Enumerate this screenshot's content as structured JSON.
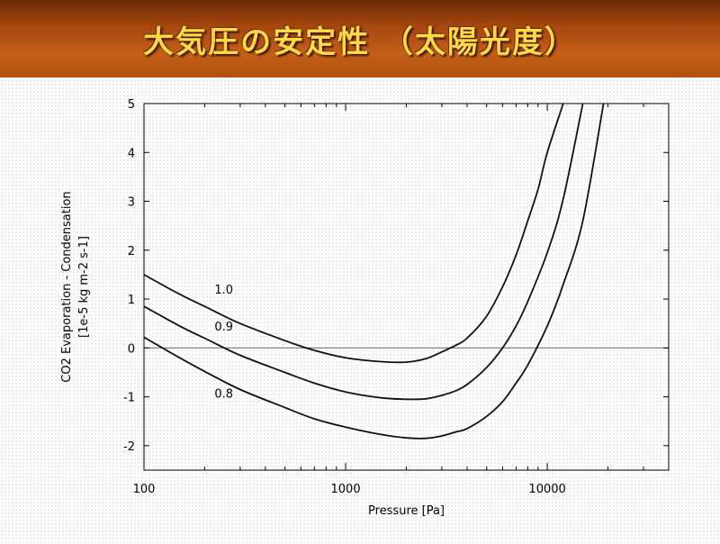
{
  "title": "大気圧の安定性 （太陽光度）",
  "chart_data": {
    "type": "line",
    "xlabel": "Pressure [Pa]",
    "ylabel_line1": "CO2 Evaporation - Condensation",
    "ylabel_line2": "[1e-5 kg m-2 s-1]",
    "xscale": "log",
    "xlim": [
      100,
      40000
    ],
    "ylim": [
      -2.5,
      5
    ],
    "xticks": [
      100,
      1000,
      10000
    ],
    "xtick_labels": [
      "100",
      "1000",
      "10000"
    ],
    "yticks": [
      -2,
      -1,
      0,
      1,
      2,
      3,
      4,
      5
    ],
    "ytick_labels": [
      "-2",
      "-1",
      "0",
      "1",
      "2",
      "3",
      "4",
      "5"
    ],
    "zero_line": true,
    "series": [
      {
        "name": "1.0",
        "x": [
          100,
          150,
          200,
          300,
          500,
          700,
          1000,
          1500,
          2000,
          2500,
          3000,
          3500,
          4000,
          5000,
          6000,
          7000,
          8000,
          9000,
          10000,
          12000
        ],
        "y": [
          1.5,
          1.1,
          0.85,
          0.5,
          0.15,
          -0.05,
          -0.2,
          -0.28,
          -0.29,
          -0.22,
          -0.08,
          0.05,
          0.2,
          0.65,
          1.25,
          1.9,
          2.6,
          3.25,
          4.0,
          5.0
        ]
      },
      {
        "name": "0.9",
        "x": [
          100,
          150,
          200,
          300,
          500,
          700,
          1000,
          1500,
          2000,
          2500,
          3000,
          3500,
          4000,
          5000,
          6000,
          7000,
          8000,
          10000,
          12000,
          15000
        ],
        "y": [
          0.85,
          0.45,
          0.2,
          -0.15,
          -0.5,
          -0.72,
          -0.9,
          -1.02,
          -1.05,
          -1.04,
          -0.97,
          -0.88,
          -0.75,
          -0.4,
          0.0,
          0.45,
          0.95,
          1.95,
          3.05,
          5.0
        ]
      },
      {
        "name": "0.8",
        "x": [
          100,
          150,
          200,
          300,
          500,
          700,
          1000,
          1500,
          2000,
          2500,
          3000,
          3500,
          4000,
          5000,
          6000,
          7000,
          8000,
          10000,
          12000,
          15000,
          19000
        ],
        "y": [
          0.22,
          -0.2,
          -0.48,
          -0.85,
          -1.22,
          -1.45,
          -1.62,
          -1.77,
          -1.84,
          -1.85,
          -1.8,
          -1.72,
          -1.65,
          -1.4,
          -1.1,
          -0.72,
          -0.35,
          0.45,
          1.3,
          2.6,
          5.0
        ]
      }
    ],
    "annotations": [
      {
        "text": "1.0",
        "x": 220,
        "y": 1.2
      },
      {
        "text": "0.9",
        "x": 220,
        "y": 0.45
      },
      {
        "text": "0.8",
        "x": 220,
        "y": -0.92
      }
    ]
  }
}
